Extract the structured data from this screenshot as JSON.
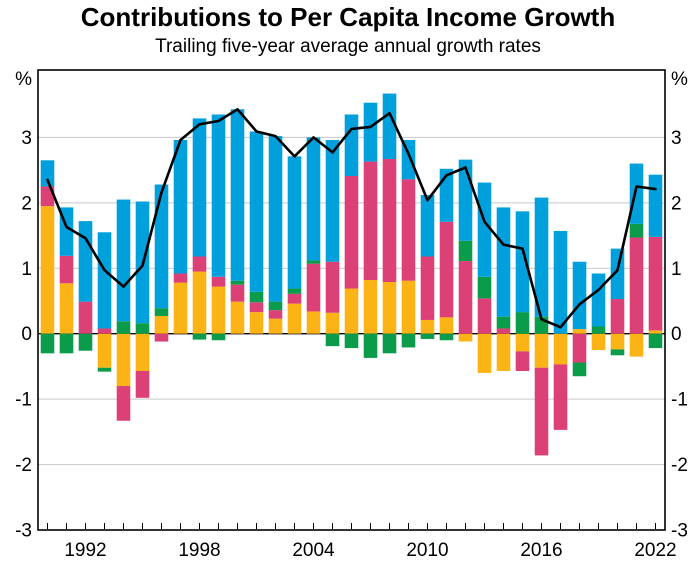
{
  "header": {
    "title": "Contributions to Per Capita Income Growth",
    "subtitle": "Trailing five-year average annual growth rates"
  },
  "y_axis": {
    "unit_label": "%",
    "tick_values": [
      3,
      2,
      1,
      0,
      -1,
      -2,
      -3
    ]
  },
  "x_axis": {
    "labeled_years": [
      1992,
      1998,
      2004,
      2010,
      2016,
      2022
    ]
  },
  "colors": {
    "orange": "#FCB316",
    "pink": "#DB4077",
    "green": "#0A9C4A",
    "blue": "#00A0DC",
    "line": "#000000",
    "grid": "#c9c9c9",
    "frame": "#000000"
  },
  "chart_data": {
    "type": "bar",
    "subtype": "stacked_bar_with_line",
    "title": "Contributions to Per Capita Income Growth",
    "subtitle": "Trailing five-year average annual growth rates",
    "ylabel": "%",
    "ylim": [
      -3,
      4.03
    ],
    "yticks": [
      -3,
      -2,
      -1,
      0,
      1,
      2,
      3
    ],
    "grid": true,
    "legend": "none",
    "xtick_labels": [
      1992,
      1998,
      2004,
      2010,
      2016,
      2022
    ],
    "categories": [
      1990,
      1991,
      1992,
      1993,
      1994,
      1995,
      1996,
      1997,
      1998,
      1999,
      2000,
      2001,
      2002,
      2003,
      2004,
      2005,
      2006,
      2007,
      2008,
      2009,
      2010,
      2011,
      2012,
      2013,
      2014,
      2015,
      2016,
      2017,
      2018,
      2019,
      2020,
      2021,
      2022
    ],
    "series": [
      {
        "name": "orange-component",
        "color": "#FCB316",
        "values": [
          1.95,
          0.77,
          0.0,
          -0.52,
          -0.8,
          -0.57,
          0.27,
          0.78,
          0.95,
          0.72,
          0.49,
          0.33,
          0.23,
          0.46,
          0.34,
          0.32,
          0.69,
          0.82,
          0.79,
          0.81,
          0.21,
          0.25,
          -0.12,
          -0.6,
          -0.57,
          -0.27,
          -0.52,
          -0.47,
          0.07,
          -0.25,
          -0.24,
          -0.35,
          0.05
        ]
      },
      {
        "name": "pink-component",
        "color": "#DB4077",
        "values": [
          0.3,
          0.42,
          0.49,
          0.08,
          -0.53,
          -0.41,
          -0.12,
          0.14,
          0.23,
          0.15,
          0.26,
          0.15,
          0.13,
          0.15,
          0.73,
          0.78,
          1.72,
          1.81,
          1.88,
          1.55,
          0.97,
          1.46,
          1.11,
          0.54,
          0.08,
          -0.3,
          -1.34,
          -1.0,
          -0.44,
          0.0,
          0.53,
          1.47,
          1.43
        ]
      },
      {
        "name": "green-component",
        "color": "#0A9C4A",
        "values": [
          -0.3,
          -0.3,
          -0.26,
          -0.06,
          0.19,
          0.16,
          0.12,
          0.0,
          -0.09,
          -0.1,
          0.06,
          0.16,
          0.13,
          0.08,
          0.05,
          -0.19,
          -0.22,
          -0.37,
          -0.3,
          -0.21,
          -0.08,
          -0.1,
          0.31,
          0.33,
          0.18,
          0.33,
          0.26,
          0.0,
          -0.21,
          0.11,
          -0.09,
          0.21,
          -0.22
        ]
      },
      {
        "name": "blue-component",
        "color": "#00A0DC",
        "values": [
          0.4,
          0.74,
          1.23,
          1.47,
          1.86,
          1.86,
          1.89,
          2.04,
          2.11,
          2.48,
          2.62,
          2.45,
          2.53,
          2.02,
          1.88,
          1.86,
          0.94,
          0.9,
          1.0,
          0.6,
          0.94,
          0.81,
          1.24,
          1.44,
          1.67,
          1.54,
          1.82,
          1.57,
          1.03,
          0.81,
          0.77,
          0.92,
          0.95
        ]
      }
    ],
    "line": {
      "name": "total-growth-line",
      "color": "#000000",
      "values": [
        2.35,
        1.63,
        1.46,
        0.97,
        0.72,
        1.04,
        2.16,
        2.96,
        3.2,
        3.25,
        3.43,
        3.09,
        3.02,
        2.71,
        3.0,
        2.77,
        3.13,
        3.16,
        3.37,
        2.75,
        2.04,
        2.42,
        2.54,
        1.71,
        1.36,
        1.3,
        0.22,
        0.1,
        0.45,
        0.67,
        0.97,
        2.25,
        2.21
      ]
    }
  }
}
